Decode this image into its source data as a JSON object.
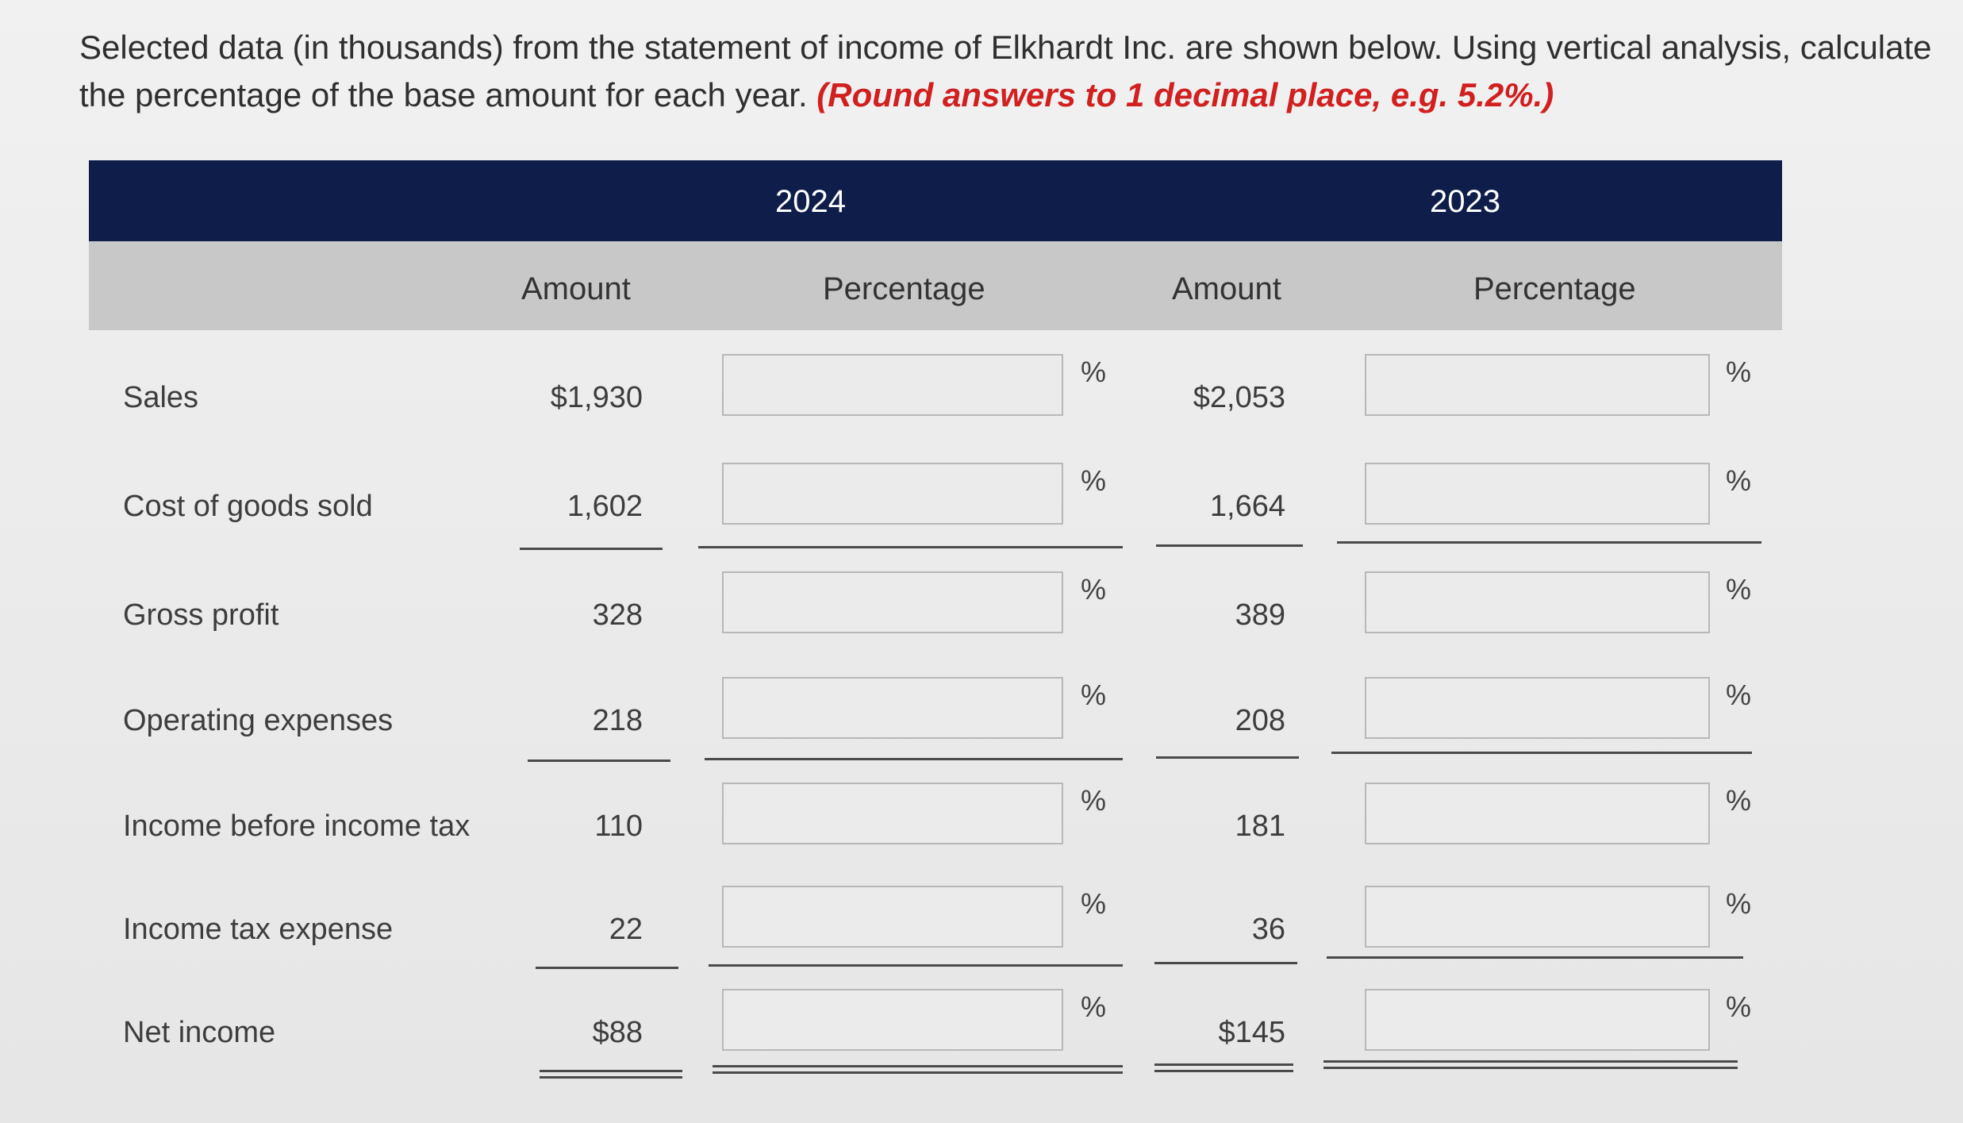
{
  "instructions": {
    "text": "Selected data (in thousands) from the statement of income of Elkhardt Inc. are shown below. Using vertical analysis, calculate the percentage of the base amount for each year.",
    "note": "(Round answers to 1 decimal place, e.g. 5.2%.)"
  },
  "table": {
    "year_2024": "2024",
    "year_2023": "2023",
    "amount_header_2024": "Amount",
    "percentage_header_2024": "Percentage",
    "amount_header_2023": "Amount",
    "percentage_header_2023": "Percentage",
    "percent_symbol": "%",
    "rows": [
      {
        "label": "Sales",
        "amount_2024": "$1,930",
        "pct_2024": "",
        "amount_2023": "$2,053",
        "pct_2023": ""
      },
      {
        "label": "Cost of goods sold",
        "amount_2024": "1,602",
        "pct_2024": "",
        "amount_2023": "1,664",
        "pct_2023": ""
      },
      {
        "label": "Gross profit",
        "amount_2024": "328",
        "pct_2024": "",
        "amount_2023": "389",
        "pct_2023": ""
      },
      {
        "label": "Operating expenses",
        "amount_2024": "218",
        "pct_2024": "",
        "amount_2023": "208",
        "pct_2023": ""
      },
      {
        "label": "Income before income tax",
        "amount_2024": "110",
        "pct_2024": "",
        "amount_2023": "181",
        "pct_2023": ""
      },
      {
        "label": "Income tax expense",
        "amount_2024": "22",
        "pct_2024": "",
        "amount_2023": "36",
        "pct_2023": ""
      },
      {
        "label": "Net income",
        "amount_2024": "$88",
        "pct_2024": "",
        "amount_2023": "$145",
        "pct_2023": ""
      }
    ]
  }
}
